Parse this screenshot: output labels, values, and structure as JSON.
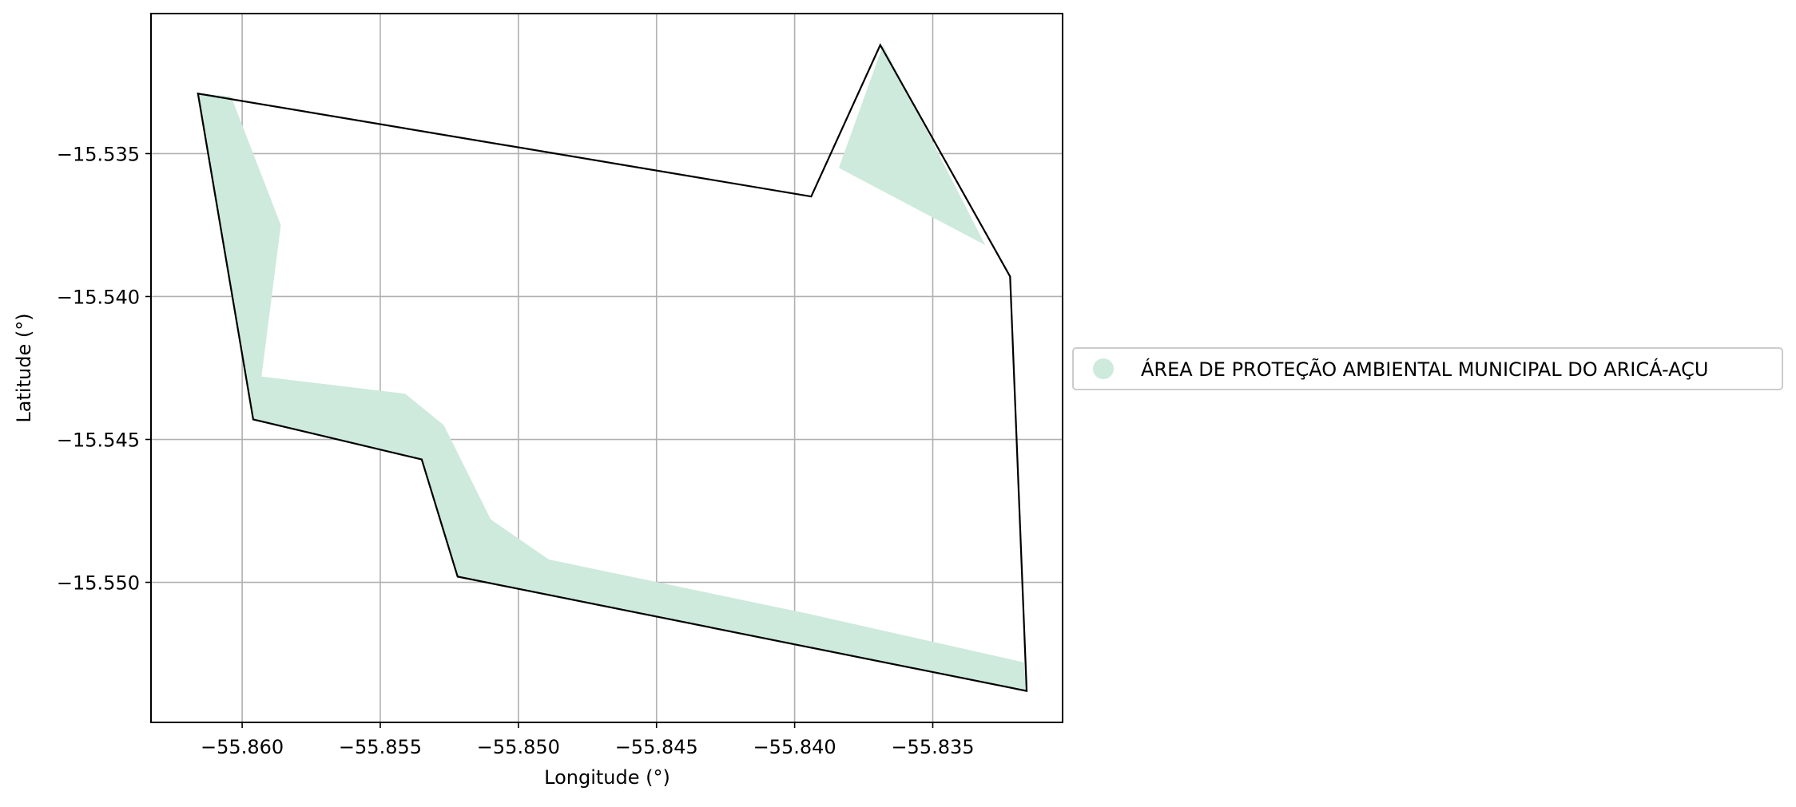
{
  "chart_data": {
    "type": "map",
    "xlabel": "Longitude (°)",
    "ylabel": "Latitude (°)",
    "xlim": [
      -55.8633,
      -55.8303
    ],
    "ylim": [
      -15.5549,
      -15.5301
    ],
    "grid": true,
    "x_ticks": [
      -55.86,
      -55.855,
      -55.85,
      -55.845,
      -55.84,
      -55.835
    ],
    "x_tick_labels": [
      "−55.860",
      "−55.855",
      "−55.850",
      "−55.845",
      "−55.840",
      "−55.835"
    ],
    "y_ticks": [
      -15.535,
      -15.54,
      -15.545,
      -15.55
    ],
    "y_tick_labels": [
      "−15.535",
      "−15.540",
      "−15.545",
      "−15.550"
    ],
    "legend": {
      "placement": "center-right-outside",
      "entries": [
        {
          "label": "ÁREA DE PROTEÇÃO AMBIENTAL MUNICIPAL DO ARICÁ-AÇU",
          "color": "#cdeadc",
          "marker": "circle"
        }
      ]
    },
    "layers": [
      {
        "name": "ÁREA DE PROTEÇÃO AMBIENTAL MUNICIPAL DO ARICÁ-AÇU",
        "kind": "filled-polygons",
        "fill": "#cdeadc",
        "polygons": [
          [
            [
              -55.8616,
              -15.5329
            ],
            [
              -55.8604,
              -15.533
            ],
            [
              -55.8586,
              -15.5375
            ],
            [
              -55.8593,
              -15.5428
            ],
            [
              -55.8541,
              -15.5434
            ],
            [
              -55.8527,
              -15.5445
            ],
            [
              -55.851,
              -15.5478
            ],
            [
              -55.8489,
              -15.5492
            ],
            [
              -55.8395,
              -15.5511
            ],
            [
              -55.8317,
              -15.5528
            ],
            [
              -55.8316,
              -15.5538
            ],
            [
              -55.8522,
              -15.5498
            ],
            [
              -55.8535,
              -15.5457
            ],
            [
              -55.8596,
              -15.5443
            ]
          ],
          [
            [
              -55.8368,
              -15.5312
            ],
            [
              -55.8384,
              -15.5355
            ],
            [
              -55.8331,
              -15.5382
            ]
          ]
        ]
      },
      {
        "name": "boundary",
        "kind": "outline",
        "stroke": "#000000",
        "points": [
          [
            -55.8616,
            -15.5329
          ],
          [
            -55.8394,
            -15.5365
          ],
          [
            -55.8369,
            -15.5312
          ],
          [
            -55.8322,
            -15.5393
          ],
          [
            -55.8316,
            -15.5538
          ],
          [
            -55.8522,
            -15.5498
          ],
          [
            -55.8535,
            -15.5457
          ],
          [
            -55.8596,
            -15.5443
          ]
        ]
      }
    ]
  }
}
